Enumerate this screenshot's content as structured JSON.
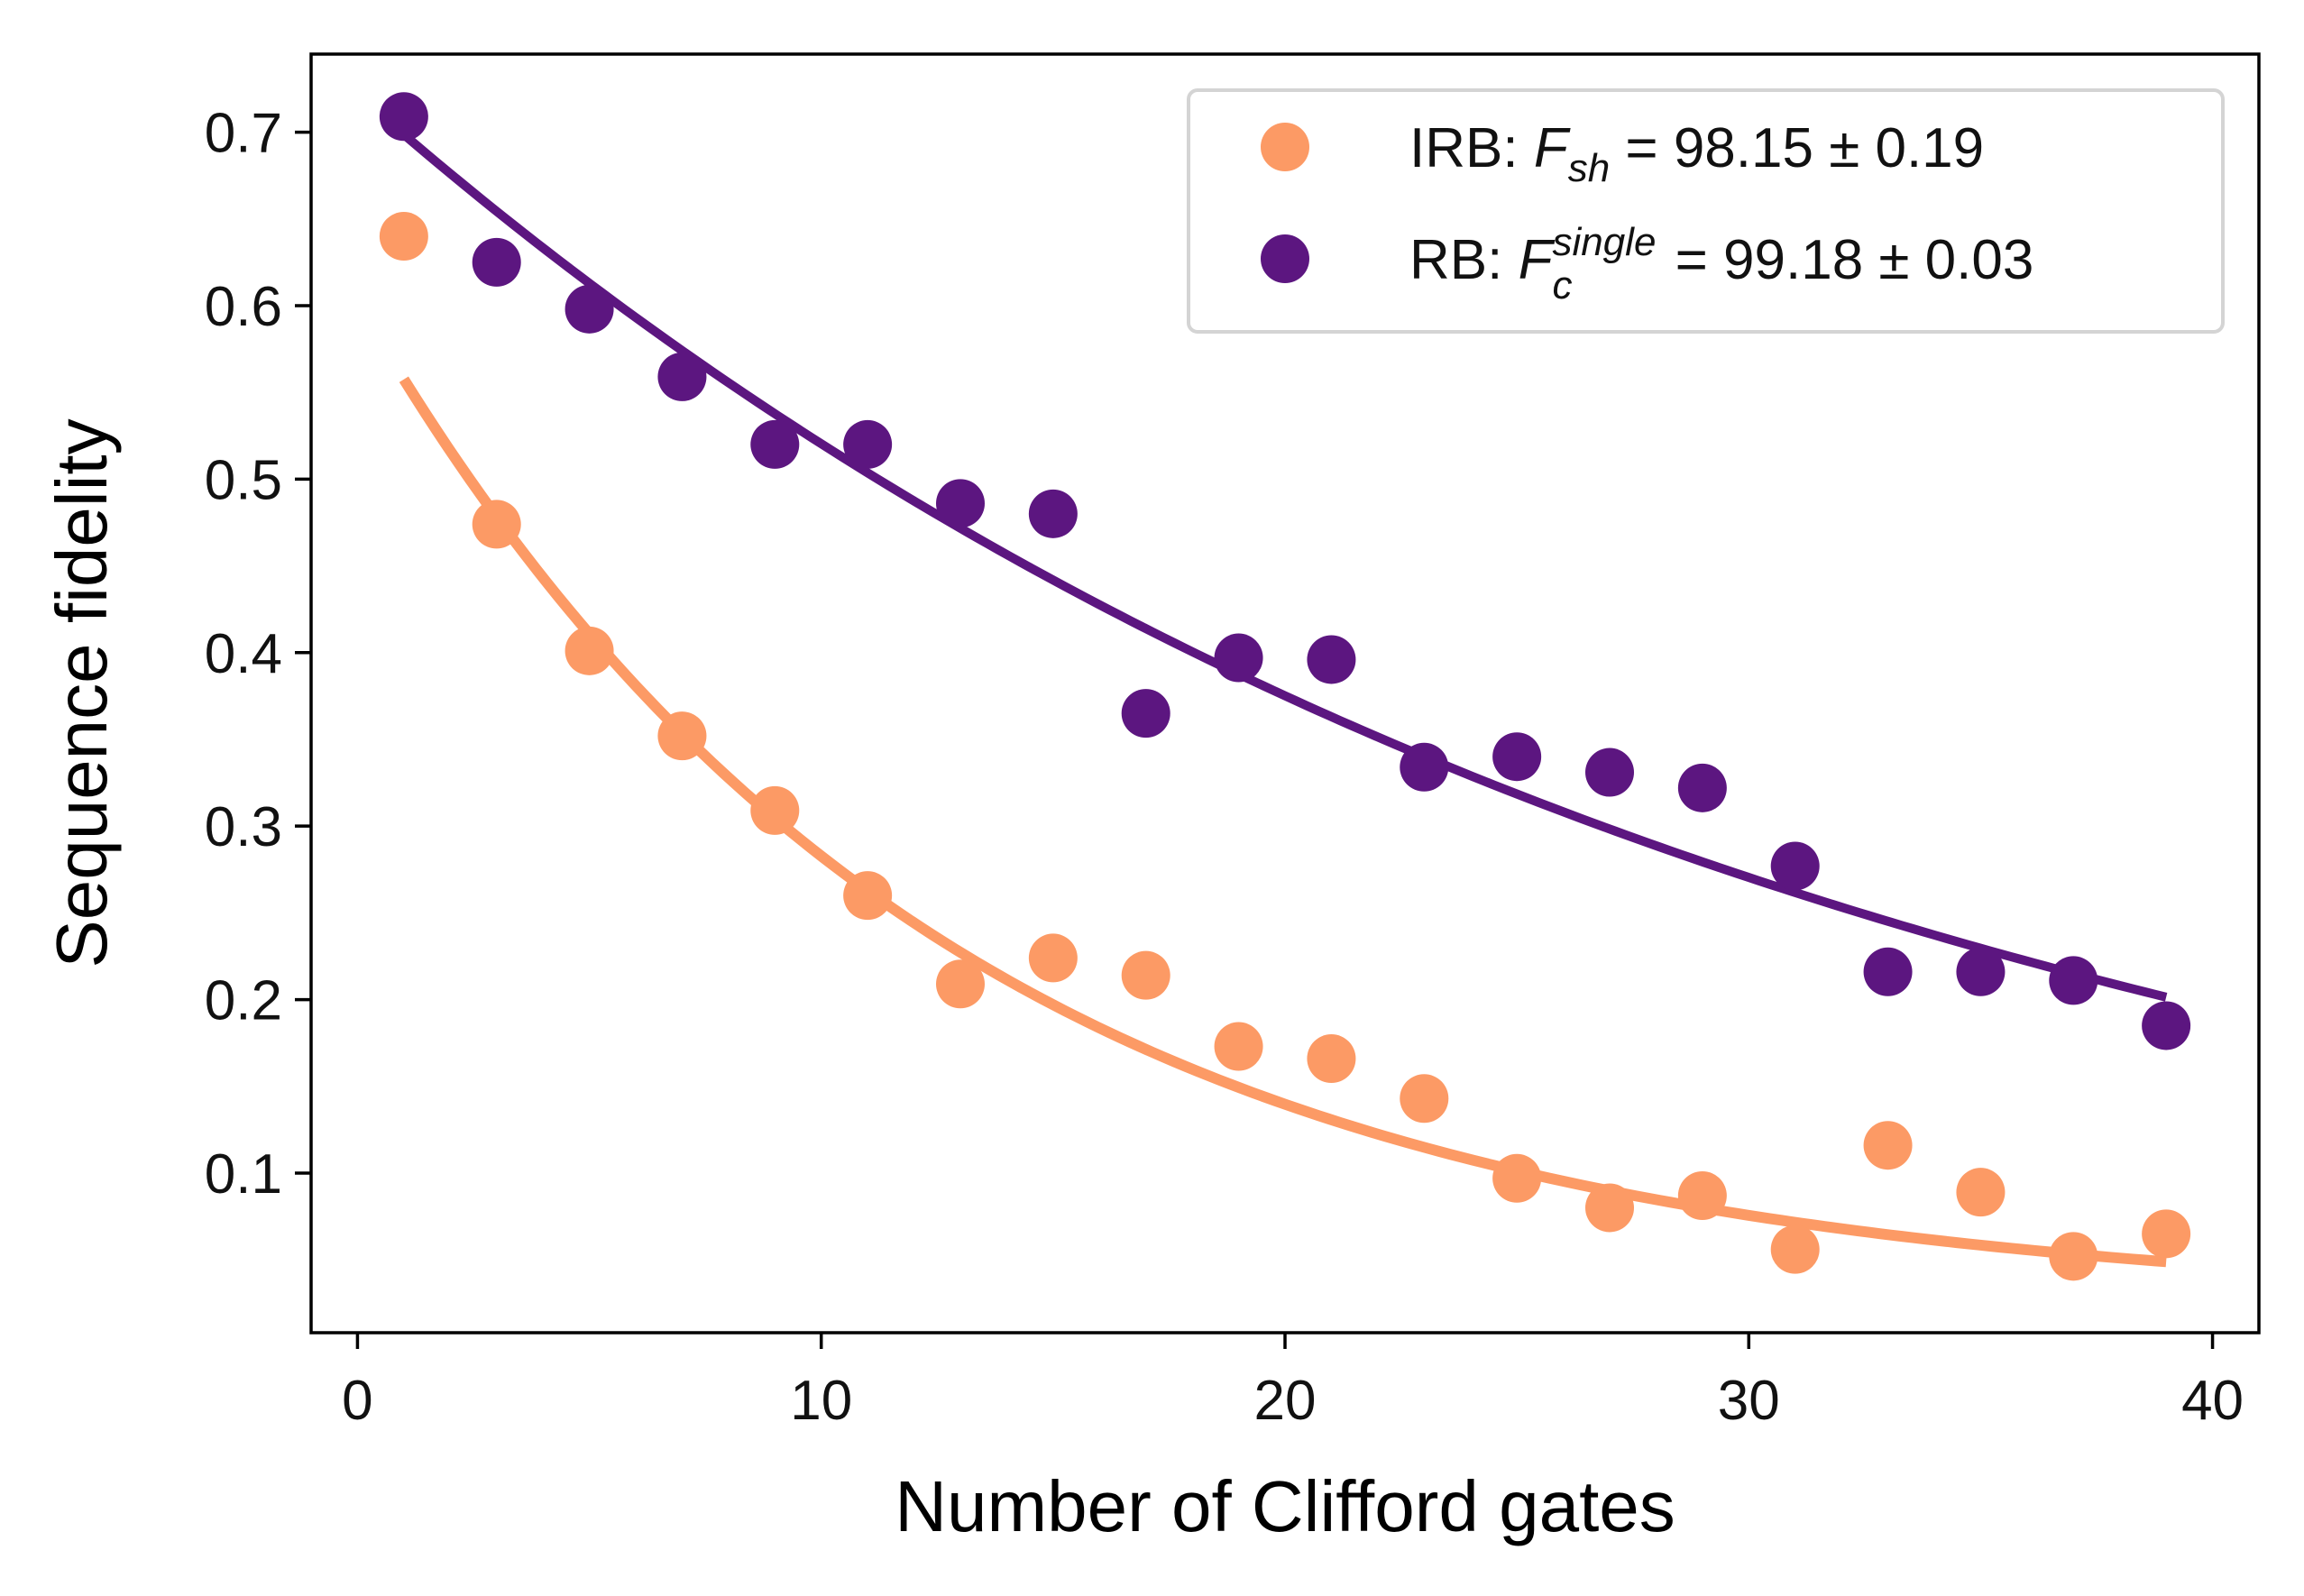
{
  "chart_data": {
    "type": "scatter",
    "title": "",
    "xlabel": "Number of Clifford gates",
    "ylabel": "Sequence fidelity",
    "xlim": [
      -1,
      41
    ],
    "ylim": [
      0.008,
      0.745
    ],
    "xticks": [
      0,
      10,
      20,
      30,
      40
    ],
    "xtick_labels": [
      "0",
      "10",
      "20",
      "30",
      "40"
    ],
    "yticks": [
      0.1,
      0.2,
      0.3,
      0.4,
      0.5,
      0.6,
      0.7
    ],
    "ytick_labels": [
      "0.1",
      "0.2",
      "0.3",
      "0.4",
      "0.5",
      "0.6",
      "0.7"
    ],
    "grid": false,
    "legend_position": "top-right",
    "series": [
      {
        "name": "IRB",
        "legend_prefix": "IRB: ",
        "legend_symbol": "F",
        "legend_subscript": "sh",
        "legend_superscript": "",
        "legend_value": " = 98.15 ± 0.19",
        "color": "#fc9a65",
        "x": [
          1,
          3,
          5,
          7,
          9,
          11,
          13,
          15,
          17,
          19,
          21,
          23,
          25,
          27,
          29,
          31,
          33,
          35,
          37,
          39
        ],
        "y": [
          0.64,
          0.474,
          0.401,
          0.352,
          0.309,
          0.26,
          0.209,
          0.224,
          0.214,
          0.173,
          0.166,
          0.143,
          0.097,
          0.08,
          0.087,
          0.056,
          0.116,
          0.089,
          0.052,
          0.065
        ],
        "fit": {
          "model": "A*p^x + B",
          "A": 0.5785,
          "p": 0.9228,
          "B": 0.0237,
          "x_range": [
            1,
            39
          ]
        }
      },
      {
        "name": "RB",
        "legend_prefix": "RB: ",
        "legend_symbol": "F",
        "legend_subscript": "c",
        "legend_superscript": "single",
        "legend_value": " = 99.18 ± 0.03",
        "color": "#5c1680",
        "x": [
          1,
          3,
          5,
          7,
          9,
          11,
          13,
          15,
          17,
          19,
          21,
          23,
          25,
          27,
          29,
          31,
          33,
          35,
          37,
          39
        ],
        "y": [
          0.709,
          0.625,
          0.598,
          0.559,
          0.52,
          0.52,
          0.486,
          0.48,
          0.365,
          0.397,
          0.396,
          0.334,
          0.34,
          0.331,
          0.322,
          0.277,
          0.216,
          0.216,
          0.211,
          0.185
        ],
        "fit": {
          "model": "A*p^x + B",
          "A": 0.7219,
          "p": 0.9678,
          "B": 0.0,
          "x_range": [
            1,
            39
          ]
        }
      }
    ]
  }
}
